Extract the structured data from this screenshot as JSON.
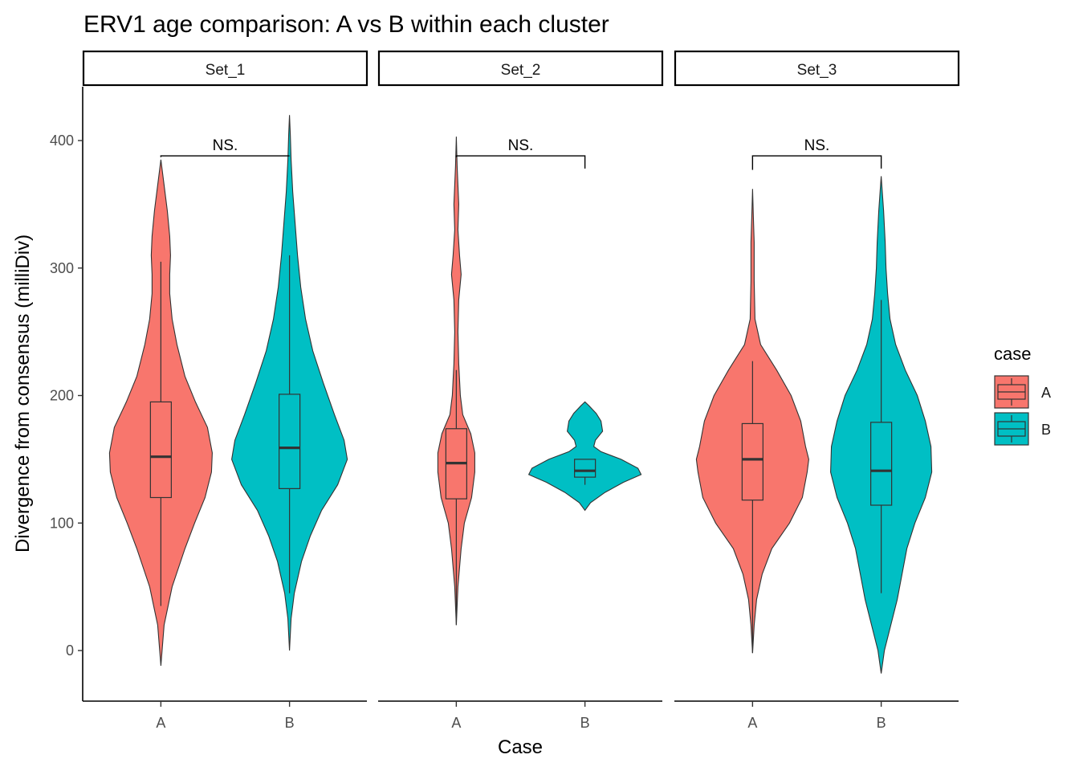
{
  "chart_data": {
    "type": "violin",
    "title": "ERV1 age comparison: A vs B within each cluster",
    "xlabel": "Case",
    "ylabel": "Divergence from consensus (milliDiv)",
    "ylim": [
      -40,
      440
    ],
    "yticks": [
      0,
      100,
      200,
      300,
      400
    ],
    "categories": [
      "A",
      "B"
    ],
    "legend": {
      "title": "case",
      "position": "right",
      "entries": [
        {
          "label": "A",
          "color": "#F8766D"
        },
        {
          "label": "B",
          "color": "#00BFC4"
        }
      ]
    },
    "panels": [
      {
        "name": "Set_1",
        "significance": {
          "label": "NS.",
          "y": 388,
          "left_drop": 387,
          "right_drop": 388
        },
        "groups": [
          {
            "case": "A",
            "color": "#F8766D",
            "box": {
              "whisker_low": 35,
              "q1": 120,
              "median": 152,
              "q3": 195,
              "whisker_high": 305
            },
            "violin": {
              "ymin": -12,
              "ymax": 385,
              "profile": [
                [
                  -12,
                  0
                ],
                [
                  20,
                  4
                ],
                [
                  50,
                  14
                ],
                [
                  80,
                  30
                ],
                [
                  100,
                  42
                ],
                [
                  120,
                  55
                ],
                [
                  140,
                  63
                ],
                [
                  155,
                  64
                ],
                [
                  175,
                  58
                ],
                [
                  195,
                  43
                ],
                [
                  215,
                  30
                ],
                [
                  240,
                  20
                ],
                [
                  260,
                  14
                ],
                [
                  280,
                  11
                ],
                [
                  295,
                  11
                ],
                [
                  310,
                  12
                ],
                [
                  325,
                  11
                ],
                [
                  345,
                  8
                ],
                [
                  360,
                  5
                ],
                [
                  375,
                  2
                ],
                [
                  385,
                  0
                ]
              ]
            }
          },
          {
            "case": "B",
            "color": "#00BFC4",
            "box": {
              "whisker_low": 45,
              "q1": 127,
              "median": 159,
              "q3": 201,
              "whisker_high": 310
            },
            "violin": {
              "ymin": 0,
              "ymax": 420,
              "profile": [
                [
                  0,
                  0
                ],
                [
                  25,
                  2
                ],
                [
                  45,
                  6
                ],
                [
                  70,
                  15
                ],
                [
                  90,
                  26
                ],
                [
                  110,
                  40
                ],
                [
                  130,
                  60
                ],
                [
                  150,
                  72
                ],
                [
                  165,
                  68
                ],
                [
                  185,
                  56
                ],
                [
                  210,
                  42
                ],
                [
                  235,
                  29
                ],
                [
                  260,
                  20
                ],
                [
                  285,
                  14
                ],
                [
                  310,
                  10
                ],
                [
                  335,
                  7
                ],
                [
                  360,
                  4
                ],
                [
                  385,
                  2
                ],
                [
                  405,
                  1
                ],
                [
                  420,
                  0
                ]
              ]
            }
          }
        ]
      },
      {
        "name": "Set_2",
        "significance": {
          "label": "NS.",
          "y": 388,
          "left_drop": 387,
          "right_drop": 378
        },
        "groups": [
          {
            "case": "A",
            "color": "#F8766D",
            "box": {
              "whisker_low": 20,
              "q1": 119,
              "median": 147,
              "q3": 174,
              "whisker_high": 220
            },
            "violin": {
              "ymin": 20,
              "ymax": 403,
              "profile": [
                [
                  20,
                  0
                ],
                [
                  50,
                  2
                ],
                [
                  80,
                  6
                ],
                [
                  100,
                  10
                ],
                [
                  120,
                  19
                ],
                [
                  140,
                  23
                ],
                [
                  155,
                  23
                ],
                [
                  170,
                  18
                ],
                [
                  185,
                  8
                ],
                [
                  200,
                  5
                ],
                [
                  225,
                  3
                ],
                [
                  250,
                  2
                ],
                [
                  275,
                  3
                ],
                [
                  295,
                  6
                ],
                [
                  310,
                  4
                ],
                [
                  330,
                  2
                ],
                [
                  350,
                  3
                ],
                [
                  365,
                  2
                ],
                [
                  380,
                  1
                ],
                [
                  403,
                  0
                ]
              ]
            }
          },
          {
            "case": "B",
            "color": "#00BFC4",
            "box": {
              "whisker_low": 130,
              "q1": 136,
              "median": 141,
              "q3": 150,
              "whisker_high": 150
            },
            "violin": {
              "ymin": 110,
              "ymax": 195,
              "profile": [
                [
                  110,
                  0
                ],
                [
                  116,
                  7
                ],
                [
                  124,
                  25
                ],
                [
                  132,
                  48
                ],
                [
                  138,
                  70
                ],
                [
                  143,
                  66
                ],
                [
                  150,
                  45
                ],
                [
                  156,
                  20
                ],
                [
                  160,
                  11
                ],
                [
                  165,
                  13
                ],
                [
                  172,
                  22
                ],
                [
                  180,
                  20
                ],
                [
                  186,
                  14
                ],
                [
                  192,
                  5
                ],
                [
                  195,
                  0
                ]
              ]
            }
          }
        ]
      },
      {
        "name": "Set_3",
        "significance": {
          "label": "NS.",
          "y": 388,
          "left_drop": 377,
          "right_drop": 378
        },
        "groups": [
          {
            "case": "A",
            "color": "#F8766D",
            "box": {
              "whisker_low": -2,
              "q1": 118,
              "median": 150,
              "q3": 178,
              "whisker_high": 227
            },
            "violin": {
              "ymin": -2,
              "ymax": 362,
              "profile": [
                [
                  -2,
                  0
                ],
                [
                  20,
                  2
                ],
                [
                  40,
                  5
                ],
                [
                  60,
                  12
                ],
                [
                  80,
                  24
                ],
                [
                  100,
                  46
                ],
                [
                  120,
                  62
                ],
                [
                  140,
                  68
                ],
                [
                  150,
                  70
                ],
                [
                  160,
                  66
                ],
                [
                  180,
                  60
                ],
                [
                  200,
                  48
                ],
                [
                  220,
                  30
                ],
                [
                  240,
                  10
                ],
                [
                  260,
                  3
                ],
                [
                  290,
                  2
                ],
                [
                  320,
                  2
                ],
                [
                  340,
                  1
                ],
                [
                  362,
                  0
                ]
              ]
            }
          },
          {
            "case": "B",
            "color": "#00BFC4",
            "box": {
              "whisker_low": 45,
              "q1": 114,
              "median": 141,
              "q3": 179,
              "whisker_high": 275
            },
            "violin": {
              "ymin": -18,
              "ymax": 372,
              "profile": [
                [
                  -18,
                  0
                ],
                [
                  0,
                  4
                ],
                [
                  20,
                  12
                ],
                [
                  40,
                  20
                ],
                [
                  60,
                  26
                ],
                [
                  80,
                  32
                ],
                [
                  100,
                  42
                ],
                [
                  120,
                  55
                ],
                [
                  140,
                  63
                ],
                [
                  160,
                  62
                ],
                [
                  180,
                  55
                ],
                [
                  200,
                  45
                ],
                [
                  220,
                  30
                ],
                [
                  240,
                  18
                ],
                [
                  260,
                  11
                ],
                [
                  280,
                  8
                ],
                [
                  300,
                  6
                ],
                [
                  320,
                  5
                ],
                [
                  345,
                  3
                ],
                [
                  372,
                  0
                ]
              ]
            }
          }
        ]
      }
    ]
  }
}
